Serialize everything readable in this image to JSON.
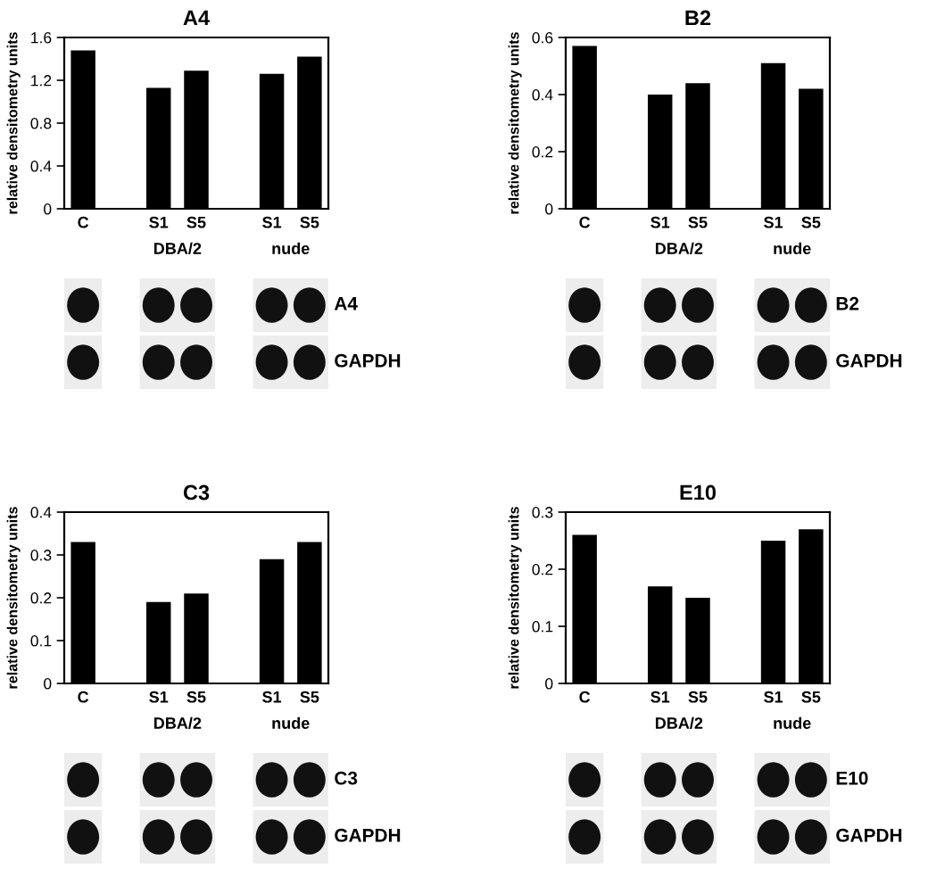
{
  "chart_data": [
    {
      "type": "bar",
      "title": "A4",
      "ylabel": "relative densitometry units",
      "categories": [
        "C",
        null,
        "S1",
        "S5",
        null,
        "S1",
        "S5"
      ],
      "values": [
        1.48,
        null,
        1.13,
        1.29,
        null,
        1.26,
        1.42
      ],
      "color": "#000000",
      "ylim": [
        0,
        1.6
      ],
      "yticks": [
        0,
        0.4,
        0.8,
        1.2,
        1.6
      ],
      "annotations": [
        "DBA/2",
        "nude",
        "A4",
        "GAPDH"
      ]
    },
    {
      "type": "bar",
      "title": "B2",
      "ylabel": "relative densitometry units",
      "categories": [
        "C",
        null,
        "S1",
        "S5",
        null,
        "S1",
        "S5"
      ],
      "values": [
        0.57,
        null,
        0.4,
        0.44,
        null,
        0.51,
        0.42
      ],
      "color": "#000000",
      "ylim": [
        0,
        0.6
      ],
      "yticks": [
        0,
        0.2,
        0.4,
        0.6
      ],
      "annotations": [
        "DBA/2",
        "nude",
        "B2",
        "GAPDH"
      ]
    },
    {
      "type": "bar",
      "title": "C3",
      "ylabel": "relative densitometry units",
      "categories": [
        "C",
        null,
        "S1",
        "S5",
        null,
        "S1",
        "S5"
      ],
      "values": [
        0.33,
        null,
        0.19,
        0.21,
        null,
        0.29,
        0.33
      ],
      "color": "#000000",
      "ylim": [
        0,
        0.4
      ],
      "yticks": [
        0,
        0.1,
        0.2,
        0.3,
        0.4
      ],
      "annotations": [
        "DBA/2",
        "nude",
        "C3",
        "GAPDH"
      ]
    },
    {
      "type": "bar",
      "title": "E10",
      "ylabel": "relative densitometry units",
      "categories": [
        "C",
        null,
        "S1",
        "S5",
        null,
        "S1",
        "S5"
      ],
      "values": [
        0.26,
        null,
        0.17,
        0.15,
        null,
        0.25,
        0.27
      ],
      "color": "#000000",
      "ylim": [
        0,
        0.3
      ],
      "yticks": [
        0,
        0.1,
        0.2,
        0.3
      ],
      "annotations": [
        "DBA/2",
        "nude",
        "E10",
        "GAPDH"
      ]
    }
  ]
}
